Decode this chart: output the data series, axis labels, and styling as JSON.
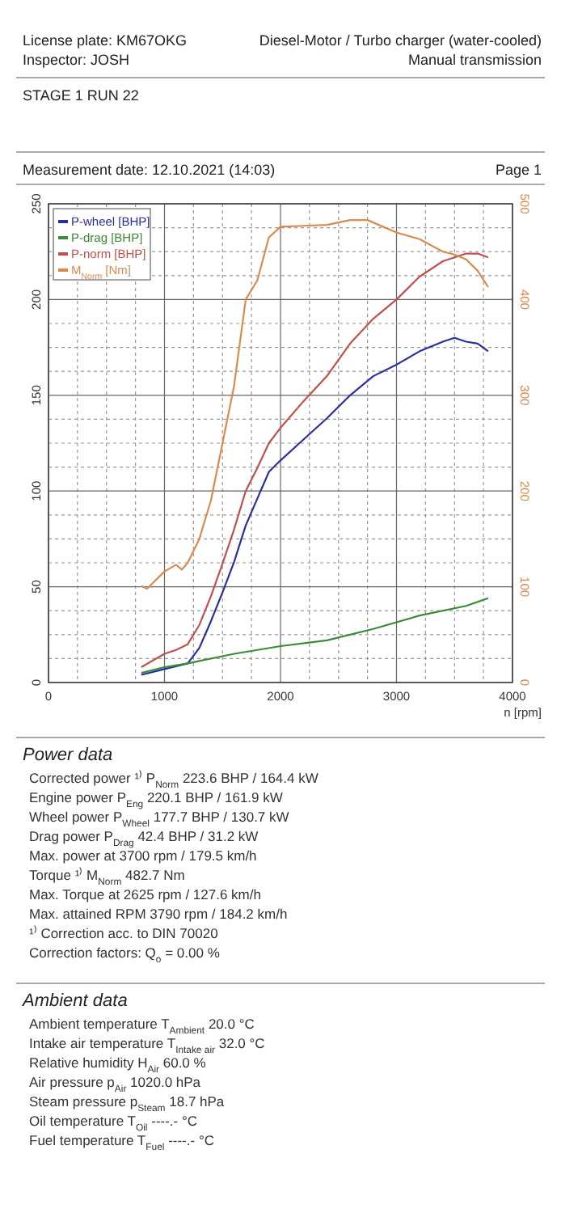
{
  "chart_data": {
    "type": "line",
    "xlabel": "n [rpm]",
    "legend": "top left",
    "grid": true,
    "line_style": "solid",
    "marker": "none",
    "xlim": [
      0,
      4000
    ],
    "xticks": [
      0,
      {
        "value": 250,
        "label": null
      },
      {
        "value": 500,
        "label": null
      },
      {
        "value": 750,
        "label": null
      },
      1000,
      {
        "value": 1250,
        "label": null
      },
      {
        "value": 1500,
        "label": null
      },
      {
        "value": 1750,
        "label": null
      },
      2000,
      {
        "value": 2250,
        "label": null
      },
      {
        "value": 2500,
        "label": null
      },
      {
        "value": 2750,
        "label": null
      },
      3000,
      {
        "value": 3250,
        "label": null
      },
      {
        "value": 3500,
        "label": null
      },
      {
        "value": 3750,
        "label": null
      },
      4000
    ],
    "ylim": [
      0,
      250
    ],
    "yticks": [
      0,
      {
        "value": 12.5,
        "label": null
      },
      {
        "value": 25,
        "label": null
      },
      {
        "value": 37.5,
        "label": null
      },
      50,
      {
        "value": 62.5,
        "label": null
      },
      {
        "value": 75,
        "label": null
      },
      {
        "value": 87.5,
        "label": null
      },
      100,
      {
        "value": 112.5,
        "label": null
      },
      {
        "value": 125,
        "label": null
      },
      {
        "value": 137.5,
        "label": null
      },
      150,
      {
        "value": 162.5,
        "label": null
      },
      {
        "value": 175,
        "label": null
      },
      {
        "value": 187.5,
        "label": null
      },
      200,
      {
        "value": 212.5,
        "label": null
      },
      {
        "value": 225,
        "label": null
      },
      {
        "value": 237.5,
        "label": null
      },
      250
    ],
    "y2lim": [
      0,
      500
    ],
    "y2ticks": [
      0,
      100,
      200,
      300,
      400,
      500
    ],
    "series": [
      {
        "name": "P-wheel [BHP]",
        "color": "#2b2f9e",
        "x": [
          800,
          1000,
          1200,
          1300,
          1400,
          1500,
          1600,
          1700,
          1800,
          1900,
          2000,
          2200,
          2400,
          2600,
          2800,
          3000,
          3200,
          3400,
          3500,
          3600,
          3700,
          3790
        ],
        "values": [
          4,
          7,
          10,
          18,
          32,
          47,
          63,
          82,
          96,
          110,
          116,
          127,
          138,
          150,
          160,
          166,
          173,
          178,
          180,
          178,
          177,
          173
        ]
      },
      {
        "name": "P-drag [BHP]",
        "color": "#3a8a3a",
        "x": [
          800,
          1000,
          1200,
          1600,
          2000,
          2400,
          2800,
          3200,
          3600,
          3790
        ],
        "values": [
          5,
          8,
          10,
          15,
          19,
          22,
          28,
          35,
          40,
          44
        ]
      },
      {
        "name": "P-norm [BHP]",
        "color": "#c0504d",
        "x": [
          800,
          1000,
          1100,
          1200,
          1300,
          1400,
          1500,
          1600,
          1700,
          1800,
          1900,
          2000,
          2200,
          2400,
          2600,
          2800,
          3000,
          3200,
          3400,
          3600,
          3700,
          3790
        ],
        "values": [
          8,
          15,
          17,
          20,
          30,
          45,
          62,
          80,
          100,
          112,
          125,
          133,
          147,
          160,
          177,
          190,
          200,
          212,
          220,
          224,
          224,
          222
        ]
      },
      {
        "name": "M$_{Norm}$ [Nm]",
        "color": "#d98b4f",
        "axis": "y2",
        "x": [
          800,
          850,
          1000,
          1100,
          1150,
          1200,
          1300,
          1400,
          1500,
          1600,
          1700,
          1800,
          1900,
          2000,
          2200,
          2400,
          2600,
          2750,
          3000,
          3200,
          3400,
          3500,
          3600,
          3700,
          3790
        ],
        "values": [
          101,
          98,
          116,
          123,
          118,
          125,
          150,
          190,
          250,
          310,
          400,
          420,
          465,
          476,
          477,
          478,
          483,
          483,
          470,
          463,
          450,
          447,
          442,
          430,
          413
        ]
      }
    ],
    "annotations": [
      "License plate: KM67OKG",
      "Inspector: JOSH",
      "Diesel-Motor / Turbo charger (water-cooled)",
      "Manual transmission",
      "STAGE 1 RUN 22",
      "Measurement date: 12.10.2021 (14:03)",
      "Page 1",
      "Power data",
      "Corrected power ¹⁾ P$_{Norm}$ 223.6 BHP / 164.4 kW",
      "Engine power P$_{Eng}$ 220.1 BHP / 161.9 kW",
      "Wheel power P$_{Wheel}$ 177.7 BHP / 130.7 kW",
      "Drag power P$_{Drag}$ 42.4 BHP / 31.2 kW",
      "Max. power at 3700 rpm / 179.5 km/h",
      "Torque ¹⁾ M$_{Norm}$ 482.7 Nm",
      "Max. Torque at 2625 rpm / 127.6 km/h",
      "Max. attained RPM 3790 rpm / 184.2 km/h",
      "¹⁾ Correction acc. to DIN 70020",
      "Correction factors: Q$_{o}$ = 0.00 %",
      "Ambient data",
      "Ambient temperature T$_{Ambient}$ 20.0 °C",
      "Intake air temperature T$_{Intake air}$ 32.0 °C",
      "Relative humidity H$_{Air}$ 60.0 %",
      "Air pressure p$_{Air}$ 1020.0 hPa",
      "Steam pressure p$_{Steam}$ 18.7 hPa",
      "Oil temperature T$_{Oil}$ ----.- °C",
      "Fuel temperature T$_{Fuel}$ ----.- °C"
    ]
  }
}
